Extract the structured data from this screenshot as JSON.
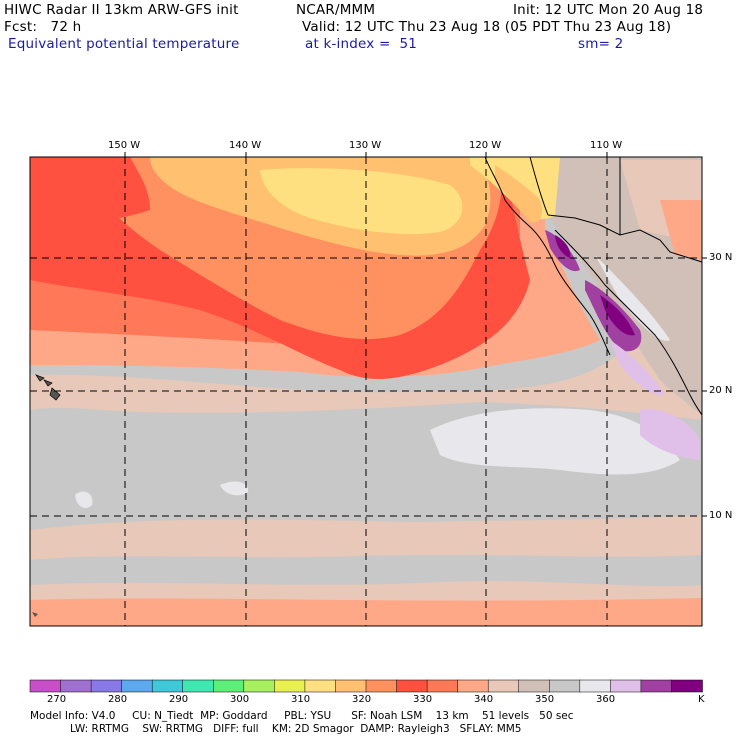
{
  "header": {
    "title": "HIWC Radar II 13km ARW-GFS init",
    "org": "NCAR/MMM",
    "init": "Init: 12 UTC Mon 20 Aug 18",
    "fcst": "Fcst:   72 h",
    "valid": "Valid: 12 UTC Thu 23 Aug 18 (05 PDT Thu 23 Aug 18)",
    "field": "Equivalent potential temperature",
    "level": "at k-index =  51",
    "smooth": "sm= 2",
    "accent_color": "#1a1aa6"
  },
  "map": {
    "lon_labels": [
      "150 W",
      "140 W",
      "130 W",
      "120 W",
      "110 W"
    ],
    "lat_labels": [
      "30 N",
      "20 N",
      "10 N"
    ]
  },
  "colorbar": {
    "colors": [
      "#c84fc8",
      "#a070d0",
      "#8878e8",
      "#5ea8f0",
      "#3ec8d8",
      "#3ee8b0",
      "#5cf078",
      "#a8f060",
      "#e8f050",
      "#ffe080",
      "#ffc070",
      "#ff9060",
      "#ff5040",
      "#ff7858",
      "#ffa888",
      "#e8c8b8",
      "#d0c0b8",
      "#c8c8c8",
      "#e8e8ec",
      "#e0c0e8",
      "#a040a0",
      "#800080"
    ],
    "tick_labels": [
      "270",
      "280",
      "290",
      "300",
      "310",
      "320",
      "330",
      "340",
      "350",
      "360"
    ],
    "unit": "K"
  },
  "footer": {
    "line1": "Model Info: V4.0     CU: N_Tiedt  MP: Goddard     PBL: YSU      SF: Noah LSM    13 km    51 levels   50 sec",
    "line2": "LW: RRTMG    SW: RRTMG   DIFF: full    KM: 2D Smagor  DAMP: Rayleigh3   SFLAY: MM5"
  }
}
